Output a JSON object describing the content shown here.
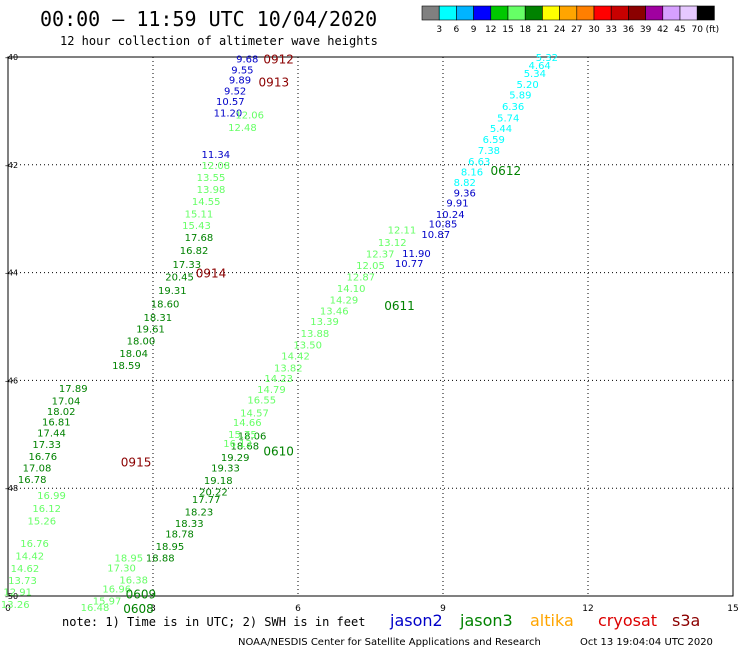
{
  "header": {
    "title": "00:00 – 11:59 UTC 10/04/2020",
    "subtitle": "12 hour collection of altimeter wave heights"
  },
  "colorbar": {
    "colors": [
      "#808080",
      "#00ffff",
      "#00b4ff",
      "#0000ff",
      "#00c800",
      "#66ff66",
      "#008200",
      "#ffff00",
      "#ffa500",
      "#ff7f00",
      "#ff0000",
      "#c80000",
      "#8b0000",
      "#a000a0",
      "#d7a0ff",
      "#e6c8ff",
      "#000000"
    ],
    "labels": [
      "3",
      "6",
      "9",
      "12",
      "15",
      "18",
      "21",
      "24",
      "27",
      "30",
      "33",
      "36",
      "39",
      "42",
      "45",
      "70",
      "(ft)"
    ]
  },
  "footer": {
    "note": "note:  1) Time is in UTC;  2) SWH is in feet",
    "legend": [
      {
        "name": "jason2",
        "color": "#0000c8"
      },
      {
        "name": "jason3",
        "color": "#008200"
      },
      {
        "name": "altika",
        "color": "#ffa500"
      },
      {
        "name": "cryosat",
        "color": "#dc0000"
      },
      {
        "name": "s3a",
        "color": "#8b0000"
      }
    ],
    "credit": "NOAA/NESDIS Center for Satellite Applications and Research",
    "timestamp": "Oct 13 19:04:04 UTC 2020"
  },
  "chart_data": {
    "type": "scatter",
    "title": "00:00 – 11:59 UTC 10/04/2020",
    "subtitle": "12 hour collection of altimeter wave heights",
    "xlim": [
      0,
      15
    ],
    "ylim": [
      -50,
      -40
    ],
    "x_ticks": [
      0,
      3,
      6,
      9,
      12,
      15
    ],
    "y_ticks": [
      -40,
      -42,
      -44,
      -46,
      -48,
      -50
    ],
    "y_tick_labels": [
      "-40",
      "-42",
      "-44",
      "-46",
      "-48",
      "-50"
    ],
    "grid": true,
    "series": [
      {
        "name": "jason2",
        "color": "#0000c8",
        "points": [
          {
            "x": 9.45,
            "y": -42.51,
            "v": "9.36"
          },
          {
            "x": 9.3,
            "y": -42.7,
            "v": "9.91"
          },
          {
            "x": 9.15,
            "y": -42.91,
            "v": "10.24"
          },
          {
            "x": 9.0,
            "y": -43.09,
            "v": "10.85"
          },
          {
            "x": 8.85,
            "y": -43.28,
            "v": "10.87"
          },
          {
            "x": 8.45,
            "y": -43.64,
            "v": "11.90"
          },
          {
            "x": 8.3,
            "y": -43.82,
            "v": "10.77"
          },
          {
            "x": 4.95,
            "y": -40.03,
            "v": "9.68"
          },
          {
            "x": 4.85,
            "y": -40.23,
            "v": "9.55"
          },
          {
            "x": 4.8,
            "y": -40.42,
            "v": "9.89"
          },
          {
            "x": 4.7,
            "y": -40.62,
            "v": "9.52"
          },
          {
            "x": 4.6,
            "y": -40.82,
            "v": "10.57"
          },
          {
            "x": 4.55,
            "y": -41.03,
            "v": "11.20"
          },
          {
            "x": 4.3,
            "y": -41.8,
            "v": "11.34"
          }
        ]
      },
      {
        "name": "jason3",
        "color": "#008200",
        "points": [
          {
            "x": 4.25,
            "y": -48.06,
            "v": "20.22"
          },
          {
            "x": 4.1,
            "y": -48.2,
            "v": "17.77"
          },
          {
            "x": 3.95,
            "y": -48.43,
            "v": "18.23"
          },
          {
            "x": 3.75,
            "y": -48.65,
            "v": "18.33"
          },
          {
            "x": 3.55,
            "y": -48.84,
            "v": "18.78"
          },
          {
            "x": 3.35,
            "y": -49.07,
            "v": "18.95"
          },
          {
            "x": 3.15,
            "y": -49.29,
            "v": "18.88"
          },
          {
            "x": 4.35,
            "y": -47.85,
            "v": "19.18"
          },
          {
            "x": 4.5,
            "y": -47.62,
            "v": "19.33"
          },
          {
            "x": 4.7,
            "y": -47.42,
            "v": "19.29"
          },
          {
            "x": 4.9,
            "y": -47.21,
            "v": "18.68"
          },
          {
            "x": 5.05,
            "y": -47.02,
            "v": "18.06"
          },
          {
            "x": 1.35,
            "y": -46.14,
            "v": "17.89"
          },
          {
            "x": 1.2,
            "y": -46.37,
            "v": "17.04"
          },
          {
            "x": 1.1,
            "y": -46.57,
            "v": "18.02"
          },
          {
            "x": 1.0,
            "y": -46.76,
            "v": "16.81"
          },
          {
            "x": 0.9,
            "y": -46.97,
            "v": "17.44"
          },
          {
            "x": 0.8,
            "y": -47.18,
            "v": "17.33"
          },
          {
            "x": 0.72,
            "y": -47.4,
            "v": "16.76"
          },
          {
            "x": 0.6,
            "y": -47.62,
            "v": "17.08"
          },
          {
            "x": 0.5,
            "y": -47.83,
            "v": "16.78"
          },
          {
            "x": 3.25,
            "y": -44.57,
            "v": "18.60"
          },
          {
            "x": 3.1,
            "y": -44.82,
            "v": "18.31"
          },
          {
            "x": 2.95,
            "y": -45.04,
            "v": "19.61"
          },
          {
            "x": 2.75,
            "y": -45.26,
            "v": "18.00"
          },
          {
            "x": 2.6,
            "y": -45.49,
            "v": "18.04"
          },
          {
            "x": 2.45,
            "y": -45.71,
            "v": "18.59"
          },
          {
            "x": 3.4,
            "y": -44.32,
            "v": "19.31"
          },
          {
            "x": 3.55,
            "y": -44.07,
            "v": "20.45"
          },
          {
            "x": 3.7,
            "y": -43.84,
            "v": "17.33"
          },
          {
            "x": 3.85,
            "y": -43.58,
            "v": "16.82"
          },
          {
            "x": 3.95,
            "y": -43.34,
            "v": "17.68"
          }
        ]
      },
      {
        "name": "jason3",
        "color": "#66ff66",
        "points": [
          {
            "x": 5.0,
            "y": -41.07,
            "v": "12.06"
          },
          {
            "x": 4.85,
            "y": -41.3,
            "v": "12.48"
          },
          {
            "x": 4.3,
            "y": -42.0,
            "v": "12.08"
          },
          {
            "x": 4.2,
            "y": -42.23,
            "v": "13.55"
          },
          {
            "x": 4.2,
            "y": -42.45,
            "v": "13.98"
          },
          {
            "x": 4.1,
            "y": -42.67,
            "v": "14.55"
          },
          {
            "x": 3.95,
            "y": -42.9,
            "v": "15.11"
          },
          {
            "x": 3.9,
            "y": -43.12,
            "v": "15.43"
          },
          {
            "x": 5.25,
            "y": -46.35,
            "v": "16.55"
          },
          {
            "x": 5.1,
            "y": -46.6,
            "v": "14.57"
          },
          {
            "x": 4.95,
            "y": -46.77,
            "v": "14.66"
          },
          {
            "x": 4.85,
            "y": -46.99,
            "v": "15.75"
          },
          {
            "x": 4.75,
            "y": -47.16,
            "v": "16.13"
          },
          {
            "x": 5.45,
            "y": -46.16,
            "v": "14.79"
          },
          {
            "x": 5.6,
            "y": -45.96,
            "v": "14.23"
          },
          {
            "x": 5.8,
            "y": -45.76,
            "v": "13.82"
          },
          {
            "x": 5.95,
            "y": -45.54,
            "v": "14.42"
          },
          {
            "x": 6.2,
            "y": -45.33,
            "v": "13.50"
          },
          {
            "x": 6.35,
            "y": -45.12,
            "v": "13.88"
          },
          {
            "x": 6.55,
            "y": -44.9,
            "v": "13.39"
          },
          {
            "x": 6.75,
            "y": -44.7,
            "v": "13.46"
          },
          {
            "x": 6.95,
            "y": -44.5,
            "v": "14.29"
          },
          {
            "x": 7.1,
            "y": -44.29,
            "v": "14.10"
          },
          {
            "x": 7.3,
            "y": -44.07,
            "v": "12.87"
          },
          {
            "x": 7.5,
            "y": -43.86,
            "v": "12.05"
          },
          {
            "x": 7.7,
            "y": -43.65,
            "v": "12.37"
          },
          {
            "x": 7.95,
            "y": -43.43,
            "v": "13.12"
          },
          {
            "x": 8.15,
            "y": -43.2,
            "v": "12.11"
          },
          {
            "x": 0.55,
            "y": -49.02,
            "v": "16.76"
          },
          {
            "x": 0.45,
            "y": -49.25,
            "v": "14.42"
          },
          {
            "x": 0.35,
            "y": -49.48,
            "v": "14.62"
          },
          {
            "x": 0.3,
            "y": -49.7,
            "v": "13.73"
          },
          {
            "x": 0.2,
            "y": -49.92,
            "v": "12.91"
          },
          {
            "x": 0.15,
            "y": -50.15,
            "v": "13.26"
          },
          {
            "x": 0.7,
            "y": -48.6,
            "v": "15.26"
          },
          {
            "x": 0.8,
            "y": -48.37,
            "v": "16.12"
          },
          {
            "x": 0.9,
            "y": -48.13,
            "v": "16.99"
          },
          {
            "x": 2.35,
            "y": -49.47,
            "v": "17.30"
          },
          {
            "x": 2.5,
            "y": -49.29,
            "v": "18.95"
          },
          {
            "x": 2.6,
            "y": -49.69,
            "v": "16.38"
          },
          {
            "x": 2.25,
            "y": -49.86,
            "v": "16.96"
          },
          {
            "x": 2.05,
            "y": -50.08,
            "v": "15.97"
          },
          {
            "x": 1.8,
            "y": -50.2,
            "v": "16.48"
          }
        ]
      },
      {
        "name": "jason3",
        "color": "#00ffff",
        "points": [
          {
            "x": 11.15,
            "y": -40.0,
            "v": "5.32"
          },
          {
            "x": 11.0,
            "y": -40.15,
            "v": "4.64"
          },
          {
            "x": 10.9,
            "y": -40.3,
            "v": "5.34"
          },
          {
            "x": 10.75,
            "y": -40.5,
            "v": "5.20"
          },
          {
            "x": 10.6,
            "y": -40.7,
            "v": "5.89"
          },
          {
            "x": 10.45,
            "y": -40.91,
            "v": "6.36"
          },
          {
            "x": 10.35,
            "y": -41.12,
            "v": "5.74"
          },
          {
            "x": 10.2,
            "y": -41.32,
            "v": "5.44"
          },
          {
            "x": 10.05,
            "y": -41.52,
            "v": "6.59"
          },
          {
            "x": 9.95,
            "y": -41.73,
            "v": "7.38"
          },
          {
            "x": 9.75,
            "y": -41.93,
            "v": "6.63"
          },
          {
            "x": 9.6,
            "y": -42.12,
            "v": "8.16"
          },
          {
            "x": 9.45,
            "y": -42.32,
            "v": "8.82"
          }
        ]
      }
    ],
    "pass_labels": [
      {
        "text": "0912",
        "x": 5.6,
        "y": -40.03,
        "color": "#8b0000"
      },
      {
        "text": "0913",
        "x": 5.5,
        "y": -40.45,
        "color": "#8b0000"
      },
      {
        "text": "0914",
        "x": 4.2,
        "y": -44.0,
        "color": "#8b0000"
      },
      {
        "text": "0915",
        "x": 2.65,
        "y": -47.5,
        "color": "#8b0000"
      },
      {
        "text": "0612",
        "x": 10.3,
        "y": -42.1,
        "color": "#008200"
      },
      {
        "text": "0611",
        "x": 8.1,
        "y": -44.6,
        "color": "#008200"
      },
      {
        "text": "0610",
        "x": 5.6,
        "y": -47.3,
        "color": "#008200"
      },
      {
        "text": "0609",
        "x": 2.75,
        "y": -49.95,
        "color": "#008200"
      },
      {
        "text": "0608",
        "x": 2.7,
        "y": -50.22,
        "color": "#008200"
      }
    ]
  }
}
